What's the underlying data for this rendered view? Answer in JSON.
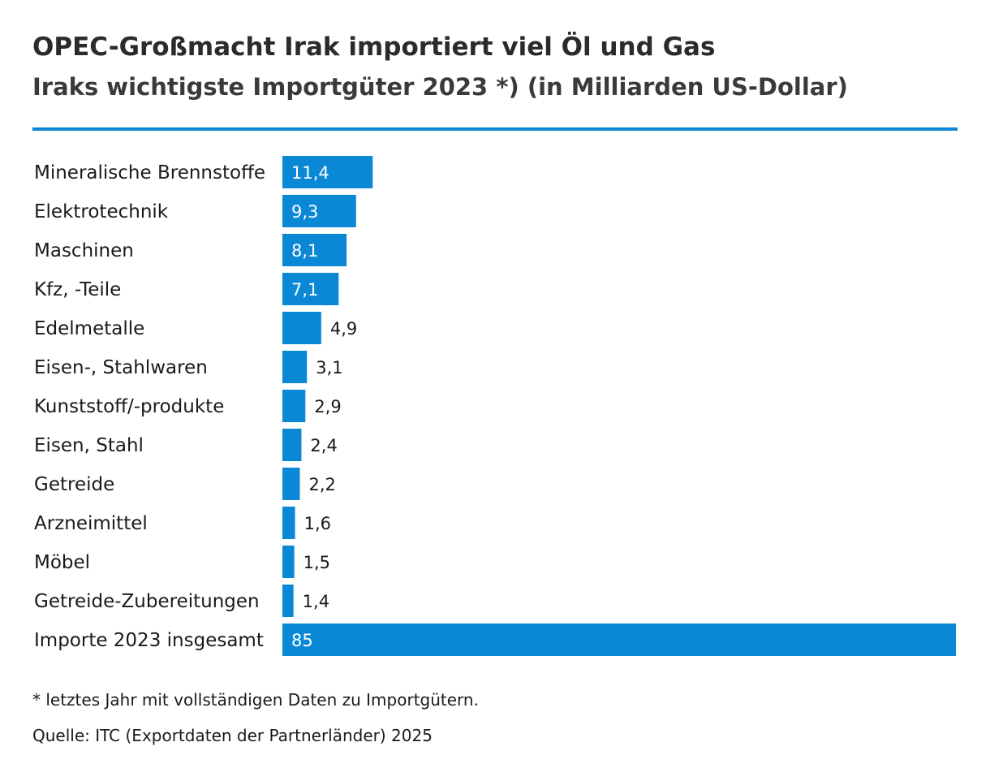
{
  "header": {
    "title": "OPEC-Großmacht Irak importiert viel Öl und Gas",
    "subtitle": "Iraks wichtigste Importgüter 2023 *) (in Milliarden US-Dollar)"
  },
  "colors": {
    "bar": "#0a88d6",
    "rule": "#0a88d6",
    "text": "#1a1a1a",
    "label_inside": "#ffffff"
  },
  "chart_data": {
    "type": "bar",
    "orientation": "horizontal",
    "categories": [
      "Mineralische Brennstoffe",
      "Elektrotechnik",
      "Maschinen",
      "Kfz, -Teile",
      "Edelmetalle",
      "Eisen-, Stahlwaren",
      "Kunststoff/-produkte",
      "Eisen, Stahl",
      "Getreide",
      "Arzneimittel",
      "Möbel",
      "Getreide-Zubereitungen",
      "Importe 2023 insgesamt"
    ],
    "values": [
      11.4,
      9.3,
      8.1,
      7.1,
      4.9,
      3.1,
      2.9,
      2.4,
      2.2,
      1.6,
      1.5,
      1.4,
      85
    ],
    "value_labels": [
      "11,4",
      "9,3",
      "8,1",
      "7,1",
      "4,9",
      "3,1",
      "2,9",
      "2,4",
      "2,2",
      "1,6",
      "1,5",
      "1,4",
      "85"
    ],
    "xlim": [
      0,
      85
    ],
    "grid": false,
    "legend": "none"
  },
  "footer": {
    "footnote": "* letztes Jahr mit vollständigen Daten zu Importgütern.",
    "source": "Quelle: ITC (Exportdaten der Partnerländer) 2025"
  }
}
